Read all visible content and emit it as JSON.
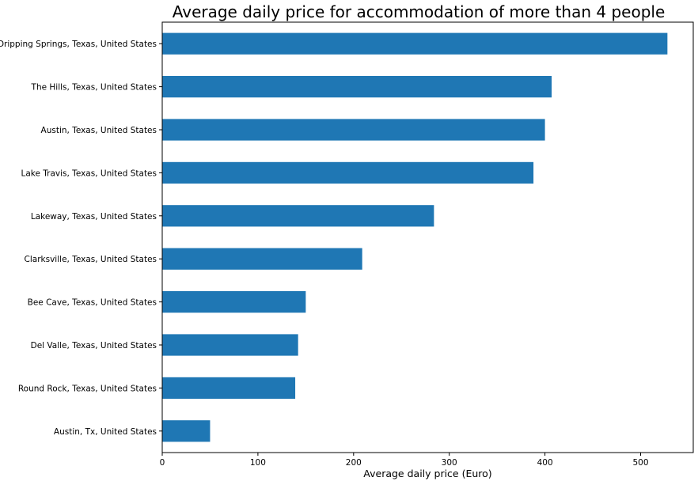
{
  "chart_data": {
    "type": "bar",
    "orientation": "horizontal",
    "title": "Average daily price for accommodation of more than 4 people",
    "xlabel": "Average daily price (Euro)",
    "ylabel": "",
    "xlim": [
      0,
      555
    ],
    "xticks": [
      0,
      100,
      200,
      300,
      400,
      500
    ],
    "grid": false,
    "bar_color": "#1f77b4",
    "categories": [
      "Dripping Springs, Texas, United States",
      "The Hills, Texas, United States",
      "Austin, Texas, United States",
      "Lake Travis, Texas, United States",
      "Lakeway, Texas, United States",
      "Clarksville, Texas, United States",
      "Bee Cave, Texas, United States",
      "Del Valle, Texas, United States",
      "Round Rock, Texas, United States",
      "Austin, Tx, United States"
    ],
    "values": [
      528,
      407,
      400,
      388,
      284,
      209,
      150,
      142,
      139,
      50
    ]
  }
}
